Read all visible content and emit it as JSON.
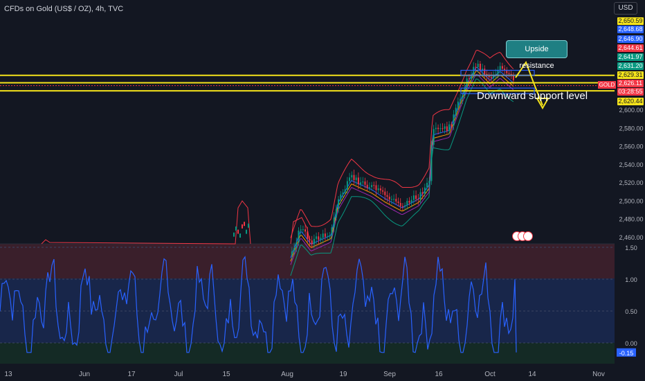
{
  "header": {
    "title": "CFDs on Gold (US$ / OZ), 4h, TVC",
    "currency": "USD"
  },
  "annotations": {
    "callout": "Upside resistance",
    "support_label": "Downward support level"
  },
  "price_tags": [
    {
      "label": "2,650.59",
      "bg": "#f5e31b",
      "fg": "#131722"
    },
    {
      "label": "2,648.68",
      "bg": "#2962ff",
      "fg": "#ffffff"
    },
    {
      "label": "2,646.90",
      "bg": "#2962ff",
      "fg": "#ffffff"
    },
    {
      "label": "2,644.61",
      "bg": "#f23645",
      "fg": "#ffffff"
    },
    {
      "label": "2,641.97",
      "bg": "#089981",
      "fg": "#ffffff"
    },
    {
      "label": "2,631.20",
      "bg": "#089981",
      "fg": "#ffffff"
    },
    {
      "label": "2,629.31",
      "bg": "#f5e31b",
      "fg": "#131722"
    },
    {
      "label": "2,626.11",
      "bg": "#f23645",
      "fg": "#ffffff"
    },
    {
      "label": "03:28:55",
      "bg": "#f23645",
      "fg": "#ffffff"
    },
    {
      "label": "2,620.44",
      "bg": "#f5e31b",
      "fg": "#131722"
    }
  ],
  "symbol_tag": "GOLD",
  "colors": {
    "background": "#131722",
    "up": "#089981",
    "down": "#f23645",
    "level_line": "#f5e31b",
    "oscillator": "#2962ff",
    "upper_band": "#f23645",
    "lower_band": "#089981"
  },
  "chart_data": [
    {
      "type": "candlestick",
      "title": "CFDs on Gold (US$ / OZ), 4h, TVC",
      "y_ticks": [
        2460,
        2480,
        2500,
        2520,
        2540,
        2560,
        2580,
        2600
      ],
      "y_tick_labels": [
        "2,460.00",
        "2,480.00",
        "2,500.00",
        "2,520.00",
        "2,540.00",
        "2,560.00",
        "2,580.00",
        "2,600.00"
      ],
      "ylim": [
        2452,
        2652
      ],
      "x_tick_labels": [
        "13",
        "Jun",
        "17",
        "Jul",
        "15",
        "Aug",
        "19",
        "Sep",
        "16",
        "Oct",
        "14",
        "Nov"
      ],
      "price_path": [
        {
          "date": "Aug 02",
          "price": 2440
        },
        {
          "date": "Aug 05",
          "price": 2470
        },
        {
          "date": "Aug 08",
          "price": 2455
        },
        {
          "date": "Aug 14",
          "price": 2465
        },
        {
          "date": "Aug 16",
          "price": 2500
        },
        {
          "date": "Aug 20",
          "price": 2525
        },
        {
          "date": "Aug 26",
          "price": 2515
        },
        {
          "date": "Aug 30",
          "price": 2505
        },
        {
          "date": "Sep 04",
          "price": 2495
        },
        {
          "date": "Sep 09",
          "price": 2505
        },
        {
          "date": "Sep 12",
          "price": 2520
        },
        {
          "date": "Sep 13",
          "price": 2575
        },
        {
          "date": "Sep 18",
          "price": 2580
        },
        {
          "date": "Sep 20",
          "price": 2600
        },
        {
          "date": "Sep 23",
          "price": 2630
        },
        {
          "date": "Sep 26",
          "price": 2650
        },
        {
          "date": "Sep 30",
          "price": 2635
        },
        {
          "date": "Oct 03",
          "price": 2645
        },
        {
          "date": "Oct 07",
          "price": 2632
        }
      ],
      "levels": [
        2637.5,
        2629.31,
        2620.44
      ],
      "current_price": 2626.11
    },
    {
      "type": "line",
      "name": "oscillator",
      "y_ticks": [
        1.5,
        1.0,
        0.5,
        0.0
      ],
      "y_tick_labels": [
        "1.50",
        "1.00",
        "0.50",
        "0.00"
      ],
      "ylim": [
        -0.3,
        1.5
      ],
      "last_value": -0.15,
      "last_label": "-0.15",
      "zones": {
        "overbought": 1.0,
        "oversold": 0.0
      }
    }
  ]
}
